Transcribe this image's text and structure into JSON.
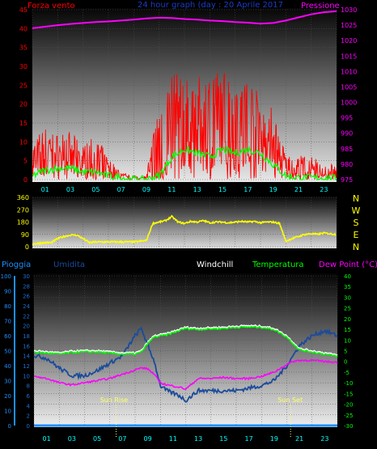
{
  "title": "24 hour graph (day : 20 Aprile 2017",
  "colors": {
    "wind": "#ff0000",
    "gust": "#00ff00",
    "pressure": "#ff00ff",
    "direction": "#ffff00",
    "humidity": "#1a4b9c",
    "windchill": "#ffffff",
    "temperature": "#00ff00",
    "dewpoint": "#ff00ff",
    "rain": "#1e90ff",
    "title": "#1a3cc8",
    "hours": "#00ffff",
    "sun": "#ffff66"
  },
  "hour_labels": [
    "01",
    "03",
    "05",
    "07",
    "09",
    "11",
    "13",
    "15",
    "17",
    "19",
    "21",
    "23"
  ],
  "chart_data": [
    {
      "type": "line",
      "name": "wind-pressure",
      "left_label": "Forza vento",
      "right_label": "Pressione",
      "ylim_left": [
        0,
        45
      ],
      "ylim_right": [
        975,
        1030
      ],
      "left_ticks": [
        0,
        5,
        10,
        15,
        20,
        25,
        30,
        35,
        40,
        45
      ],
      "right_ticks": [
        975,
        980,
        985,
        990,
        995,
        1000,
        1005,
        1010,
        1015,
        1020,
        1025,
        1030
      ],
      "x_hours": [
        0,
        1,
        2,
        3,
        4,
        5,
        6,
        7,
        8,
        9,
        10,
        11,
        12,
        13,
        14,
        15,
        16,
        17,
        18,
        19,
        20,
        21,
        22,
        23,
        24
      ],
      "pressure": [
        1024,
        1024.5,
        1025,
        1025.4,
        1025.7,
        1026,
        1026.2,
        1026.5,
        1026.8,
        1027.2,
        1027.4,
        1027.3,
        1027,
        1026.8,
        1026.5,
        1026.3,
        1026,
        1025.8,
        1025.5,
        1025.7,
        1026.5,
        1027.5,
        1028.5,
        1029.2,
        1029.5
      ],
      "wind_avg": [
        4,
        5,
        6,
        5,
        4,
        3,
        2,
        1,
        0.5,
        0.5,
        1.5,
        10,
        12,
        12,
        13,
        14,
        13,
        12,
        11,
        9,
        2,
        1.5,
        2,
        1.5,
        1
      ],
      "wind_peak": [
        11,
        14,
        12,
        13,
        9,
        12,
        6,
        2,
        1,
        1,
        24,
        29,
        27,
        27,
        28,
        30,
        27,
        28,
        22,
        19,
        7,
        7,
        6,
        6,
        3
      ],
      "gust": [
        1,
        2.5,
        3,
        3,
        2,
        2,
        1,
        0.5,
        0,
        0,
        1,
        6,
        8,
        7,
        6,
        8,
        7,
        8,
        7,
        4,
        1,
        0.5,
        0.5,
        0.5,
        0.3
      ]
    },
    {
      "type": "line",
      "name": "wind-direction",
      "ylim": [
        0,
        360
      ],
      "ticks": [
        0,
        90,
        180,
        270,
        360
      ],
      "compass_labels": [
        "N",
        "W",
        "S",
        "E",
        "N"
      ],
      "x_hours": [
        0,
        0.5,
        1,
        1.5,
        2,
        2.5,
        3,
        3.5,
        4,
        4.5,
        5,
        5.5,
        6,
        6.5,
        7,
        7.5,
        8,
        8.5,
        9,
        9.5,
        10,
        10.5,
        11,
        11.5,
        12,
        12.5,
        13,
        13.5,
        14,
        14.5,
        15,
        15.5,
        16,
        16.5,
        17,
        17.5,
        18,
        18.5,
        19,
        19.5,
        20,
        20.5,
        21,
        21.5,
        22,
        22.5,
        23,
        23.5,
        24
      ],
      "values": [
        20,
        25,
        30,
        30,
        60,
        75,
        85,
        85,
        60,
        30,
        35,
        35,
        35,
        35,
        35,
        35,
        35,
        40,
        45,
        170,
        180,
        190,
        220,
        180,
        170,
        185,
        180,
        190,
        175,
        180,
        180,
        175,
        180,
        185,
        180,
        185,
        175,
        180,
        180,
        170,
        40,
        60,
        75,
        90,
        95,
        90,
        100,
        95,
        90
      ]
    },
    {
      "type": "line",
      "name": "weather",
      "labels": {
        "rain": "Pioggia",
        "humidity": "Umidita",
        "windchill": "Windchill",
        "temperature": "Temperatura",
        "dewpoint": "Dew Point (°C)"
      },
      "rain_ticks": [
        0,
        10,
        20,
        30,
        40,
        50,
        60,
        70,
        80,
        90,
        100
      ],
      "humidity_ticks": [
        0,
        2,
        4,
        6,
        8,
        10,
        12,
        14,
        16,
        18,
        20,
        22,
        24,
        26,
        28,
        30
      ],
      "temp_ticks": [
        -30,
        -25,
        -20,
        -15,
        -10,
        -5,
        0,
        5,
        10,
        15,
        20,
        25,
        30,
        35,
        40
      ],
      "ylim_temp": [
        -30,
        40
      ],
      "ylim_humidity": [
        0,
        30
      ],
      "x_hours": [
        0,
        1,
        2,
        3,
        4,
        5,
        6,
        7,
        8,
        8.5,
        9,
        9.5,
        10,
        10.5,
        11,
        11.5,
        12,
        13,
        14,
        15,
        16,
        17,
        18,
        19,
        20,
        20.5,
        21,
        22,
        23,
        24
      ],
      "humidity": [
        14,
        13.5,
        11.5,
        10,
        10,
        11,
        12.5,
        14,
        18,
        19.5,
        16,
        13,
        8,
        7,
        6.5,
        6,
        5,
        7,
        7,
        7,
        7,
        7.5,
        8,
        9,
        12,
        14,
        16,
        18,
        19,
        18
      ],
      "temperature": [
        5,
        4.5,
        4,
        4.8,
        5,
        5,
        4.5,
        4,
        4,
        5,
        9,
        12,
        12.5,
        13,
        14,
        15,
        16,
        15.5,
        15.8,
        16,
        16.5,
        16.7,
        16.5,
        15.5,
        12,
        9,
        6,
        5,
        4,
        3
      ],
      "dewpoint": [
        -7,
        -8,
        -10,
        -11,
        -10,
        -9,
        -8,
        -6,
        -4,
        -3,
        -3.5,
        -6,
        -10,
        -11,
        -11.5,
        -12,
        -13,
        -8,
        -8,
        -7.5,
        -8,
        -8,
        -7,
        -5,
        -1.5,
        0,
        0.5,
        0.5,
        0,
        -0.5
      ],
      "rain": [
        0,
        0,
        0,
        0,
        0,
        0,
        0,
        0,
        0,
        0,
        0,
        0,
        0,
        0,
        0,
        0,
        0,
        0,
        0,
        0,
        0,
        0,
        0,
        0,
        0,
        0,
        0,
        0,
        0,
        0
      ],
      "sun_rise": {
        "label": "Sun Rise",
        "hour": 6.5
      },
      "sun_set": {
        "label": "Sun Set",
        "hour": 20.3
      }
    }
  ]
}
